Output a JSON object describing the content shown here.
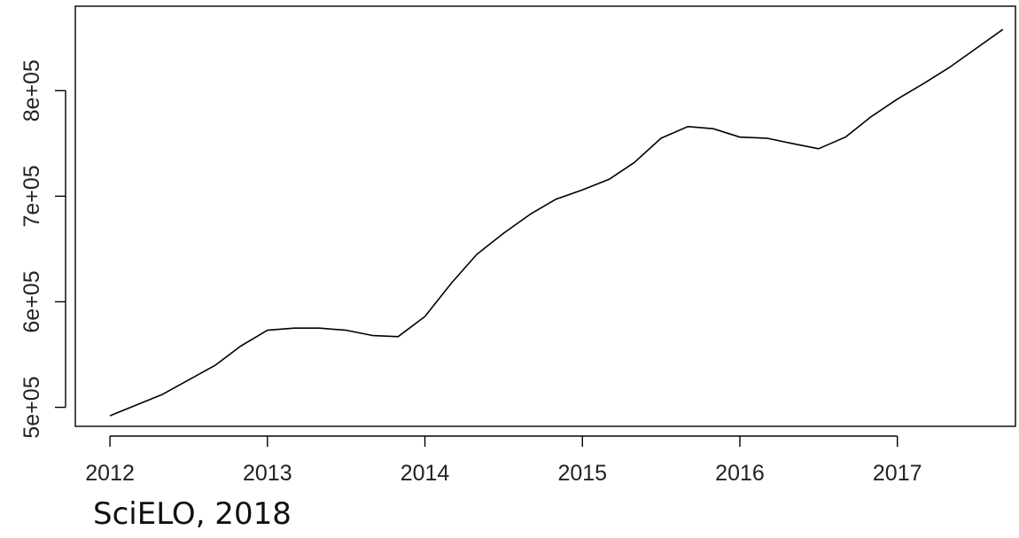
{
  "chart_data": {
    "type": "line",
    "title": "",
    "xlabel": "",
    "ylabel": "",
    "xlim": [
      2011.78,
      2017.75
    ],
    "ylim": [
      482000,
      880000
    ],
    "x_ticks": [
      2012,
      2013,
      2014,
      2015,
      2016,
      2017
    ],
    "x_tick_labels": [
      "2012",
      "2013",
      "2014",
      "2015",
      "2016",
      "2017"
    ],
    "y_ticks": [
      500000,
      600000,
      700000,
      800000
    ],
    "y_tick_labels": [
      "5e+05",
      "6e+05",
      "7e+05",
      "8e+05"
    ],
    "grid": false,
    "legend": "none",
    "line_color": "#000000",
    "series": [
      {
        "x": [
          2012.0,
          2012.33,
          2012.67,
          2012.83,
          2013.0,
          2013.17,
          2013.33,
          2013.5,
          2013.67,
          2013.83,
          2014.0,
          2014.17,
          2014.33,
          2014.5,
          2014.67,
          2014.83,
          2015.0,
          2015.17,
          2015.33,
          2015.5,
          2015.67,
          2015.83,
          2016.0,
          2016.17,
          2016.33,
          2016.5,
          2016.67,
          2016.83,
          2017.0,
          2017.17,
          2017.33,
          2017.5,
          2017.67
        ],
        "y": [
          492000,
          512000,
          540000,
          558000,
          573000,
          575000,
          575000,
          573000,
          568000,
          567000,
          586000,
          618000,
          645000,
          665000,
          683000,
          697000,
          706000,
          716000,
          732000,
          755000,
          766000,
          764000,
          756000,
          755000,
          750000,
          745000,
          756000,
          775000,
          792000,
          807000,
          822000,
          840000,
          858000
        ]
      }
    ]
  },
  "caption": {
    "source": "SciELO, 2018"
  }
}
